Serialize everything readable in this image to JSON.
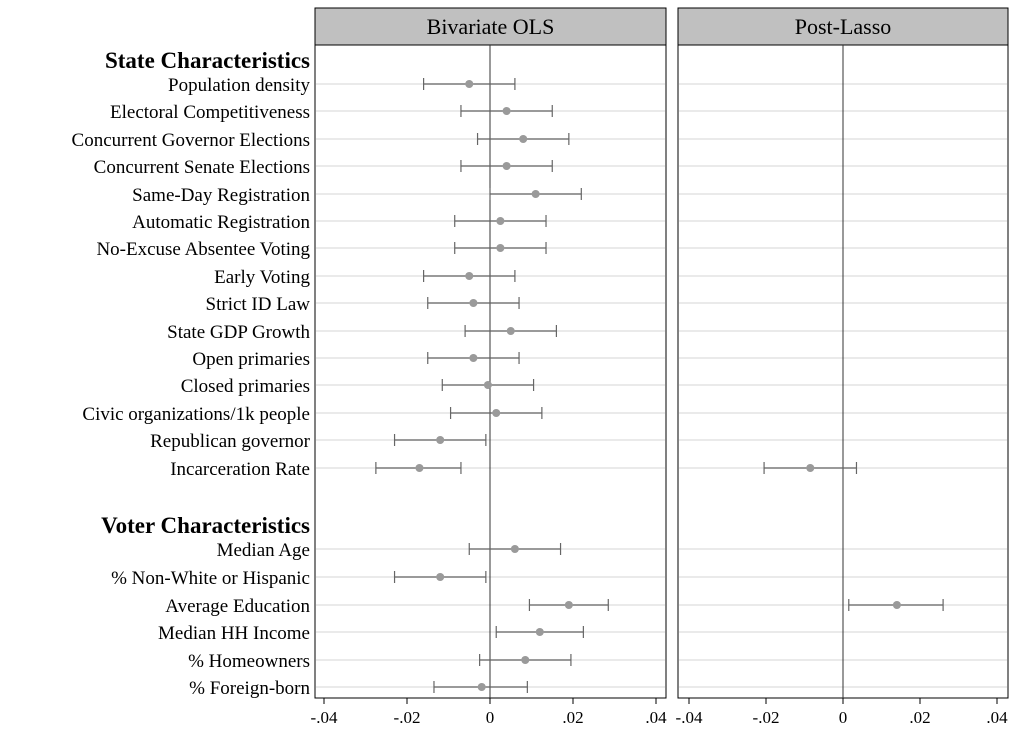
{
  "chart_data": {
    "type": "scatter",
    "subtype": "coefficient-plot",
    "x_ticks": [
      -0.04,
      -0.02,
      0,
      0.02,
      0.04
    ],
    "x_tick_labels": [
      "-.04",
      "-.02",
      "0",
      ".02",
      ".04"
    ],
    "xlim": [
      -0.0445,
      0.0405
    ],
    "grid": "horizontal row lines",
    "colors": {
      "point": "#9a9a9a",
      "ci": "#666666",
      "header_fill": "#c0c0c0",
      "row_line": "#e3e3e3"
    },
    "panels": [
      {
        "title": "Bivariate OLS"
      },
      {
        "title": "Post-Lasso"
      }
    ],
    "groups": [
      {
        "label": "State Characteristics",
        "rows": [
          {
            "label": "Population density",
            "ols": [
              -0.005,
              -0.016,
              0.006
            ],
            "lasso": null
          },
          {
            "label": "Electoral Competitiveness",
            "ols": [
              0.004,
              -0.007,
              0.015
            ],
            "lasso": null
          },
          {
            "label": "Concurrent Governor Elections",
            "ols": [
              0.008,
              -0.003,
              0.019
            ],
            "lasso": null
          },
          {
            "label": "Concurrent Senate Elections",
            "ols": [
              0.004,
              -0.007,
              0.015
            ],
            "lasso": null
          },
          {
            "label": "Same-Day Registration",
            "ols": [
              0.011,
              0.0,
              0.022
            ],
            "lasso": null
          },
          {
            "label": "Automatic Registration",
            "ols": [
              0.0025,
              -0.0085,
              0.0135
            ],
            "lasso": null
          },
          {
            "label": "No-Excuse Absentee Voting",
            "ols": [
              0.0025,
              -0.0085,
              0.0135
            ],
            "lasso": null
          },
          {
            "label": "Early Voting",
            "ols": [
              -0.005,
              -0.016,
              0.006
            ],
            "lasso": null
          },
          {
            "label": "Strict ID Law",
            "ols": [
              -0.004,
              -0.015,
              0.007
            ],
            "lasso": null
          },
          {
            "label": "State GDP Growth",
            "ols": [
              0.005,
              -0.006,
              0.016
            ],
            "lasso": null
          },
          {
            "label": "Open primaries",
            "ols": [
              -0.004,
              -0.015,
              0.007
            ],
            "lasso": null
          },
          {
            "label": "Closed primaries",
            "ols": [
              -0.0005,
              -0.0115,
              0.0105
            ],
            "lasso": null
          },
          {
            "label": "Civic organizations/1k people",
            "ols": [
              0.0015,
              -0.0095,
              0.0125
            ],
            "lasso": null
          },
          {
            "label": "Republican governor",
            "ols": [
              -0.012,
              -0.023,
              -0.001
            ],
            "lasso": null
          },
          {
            "label": "Incarceration Rate",
            "ols": [
              -0.017,
              -0.0275,
              -0.007
            ],
            "lasso": [
              -0.0085,
              -0.0205,
              0.0035
            ]
          }
        ]
      },
      {
        "label": "Voter Characteristics",
        "rows": [
          {
            "label": "Median Age",
            "ols": [
              0.006,
              -0.005,
              0.017
            ],
            "lasso": null
          },
          {
            "label": "% Non-White or Hispanic",
            "ols": [
              -0.012,
              -0.023,
              -0.001
            ],
            "lasso": null
          },
          {
            "label": "Average Education",
            "ols": [
              0.019,
              0.0095,
              0.0285
            ],
            "lasso": [
              0.014,
              0.0015,
              0.026
            ]
          },
          {
            "label": "Median HH Income",
            "ols": [
              0.012,
              0.0015,
              0.0225
            ],
            "lasso": null
          },
          {
            "label": "% Homeowners",
            "ols": [
              0.0085,
              -0.0025,
              0.0195
            ],
            "lasso": null
          },
          {
            "label": "% Foreign-born",
            "ols": [
              -0.002,
              -0.0135,
              0.009
            ],
            "lasso": null
          }
        ]
      }
    ]
  }
}
